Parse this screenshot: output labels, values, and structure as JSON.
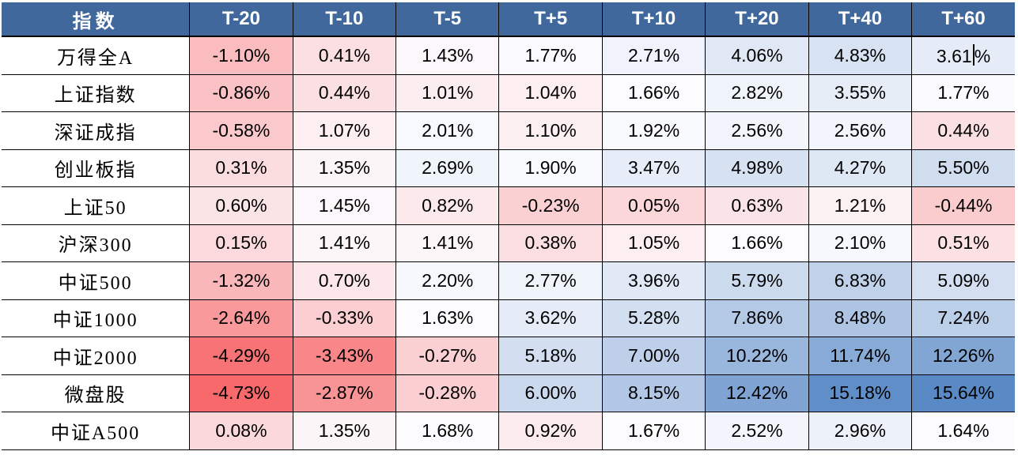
{
  "chart_data": {
    "type": "table",
    "title": "",
    "columns": [
      "指数",
      "T-20",
      "T-10",
      "T-5",
      "T+5",
      "T+10",
      "T+20",
      "T+40",
      "T+60"
    ],
    "value_format": "percent_2dp",
    "rows": [
      {
        "label": "万得全A",
        "values": [
          -1.1,
          0.41,
          1.43,
          1.77,
          2.71,
          4.06,
          4.83,
          3.61
        ]
      },
      {
        "label": "上证指数",
        "values": [
          -0.86,
          0.44,
          1.01,
          1.04,
          1.66,
          2.82,
          3.55,
          1.77
        ]
      },
      {
        "label": "深证成指",
        "values": [
          -0.58,
          1.07,
          2.01,
          1.1,
          1.92,
          2.56,
          2.56,
          0.44
        ]
      },
      {
        "label": "创业板指",
        "values": [
          0.31,
          1.35,
          2.69,
          1.9,
          3.47,
          4.98,
          4.27,
          5.5
        ]
      },
      {
        "label": "上证50",
        "values": [
          0.6,
          1.45,
          0.82,
          -0.23,
          0.05,
          0.63,
          1.21,
          -0.44
        ]
      },
      {
        "label": "沪深300",
        "values": [
          0.15,
          1.41,
          1.41,
          0.38,
          1.05,
          1.66,
          2.1,
          0.51
        ]
      },
      {
        "label": "中证500",
        "values": [
          -1.32,
          0.7,
          2.2,
          2.77,
          3.96,
          5.79,
          6.83,
          5.09
        ]
      },
      {
        "label": "中证1000",
        "values": [
          -2.64,
          -0.33,
          1.63,
          3.62,
          5.28,
          7.86,
          8.48,
          7.24
        ]
      },
      {
        "label": "中证2000",
        "values": [
          -4.29,
          -3.43,
          -0.27,
          5.18,
          7.0,
          10.22,
          11.74,
          12.26
        ]
      },
      {
        "label": "微盘股",
        "values": [
          -4.73,
          -2.87,
          -0.28,
          6.0,
          8.15,
          12.42,
          15.18,
          15.64
        ]
      },
      {
        "label": "中证A500",
        "values": [
          0.08,
          1.35,
          1.68,
          0.92,
          1.67,
          2.52,
          2.96,
          1.64
        ]
      }
    ],
    "heatmap": {
      "scale": "3-color",
      "midpoint": "median",
      "min_color": "#F8696B",
      "mid_color": "#FCFCFF",
      "max_color": "#5A8AC6"
    },
    "text_cursor_cell": {
      "row": 0,
      "col": 7
    }
  },
  "colors": {
    "header_bg": "#41689C",
    "header_text": "#FFFFFF",
    "cell_text": "#000000",
    "grid_line": "#000000"
  },
  "layout": {
    "index_col_width": 237,
    "value_col_width": 130
  }
}
